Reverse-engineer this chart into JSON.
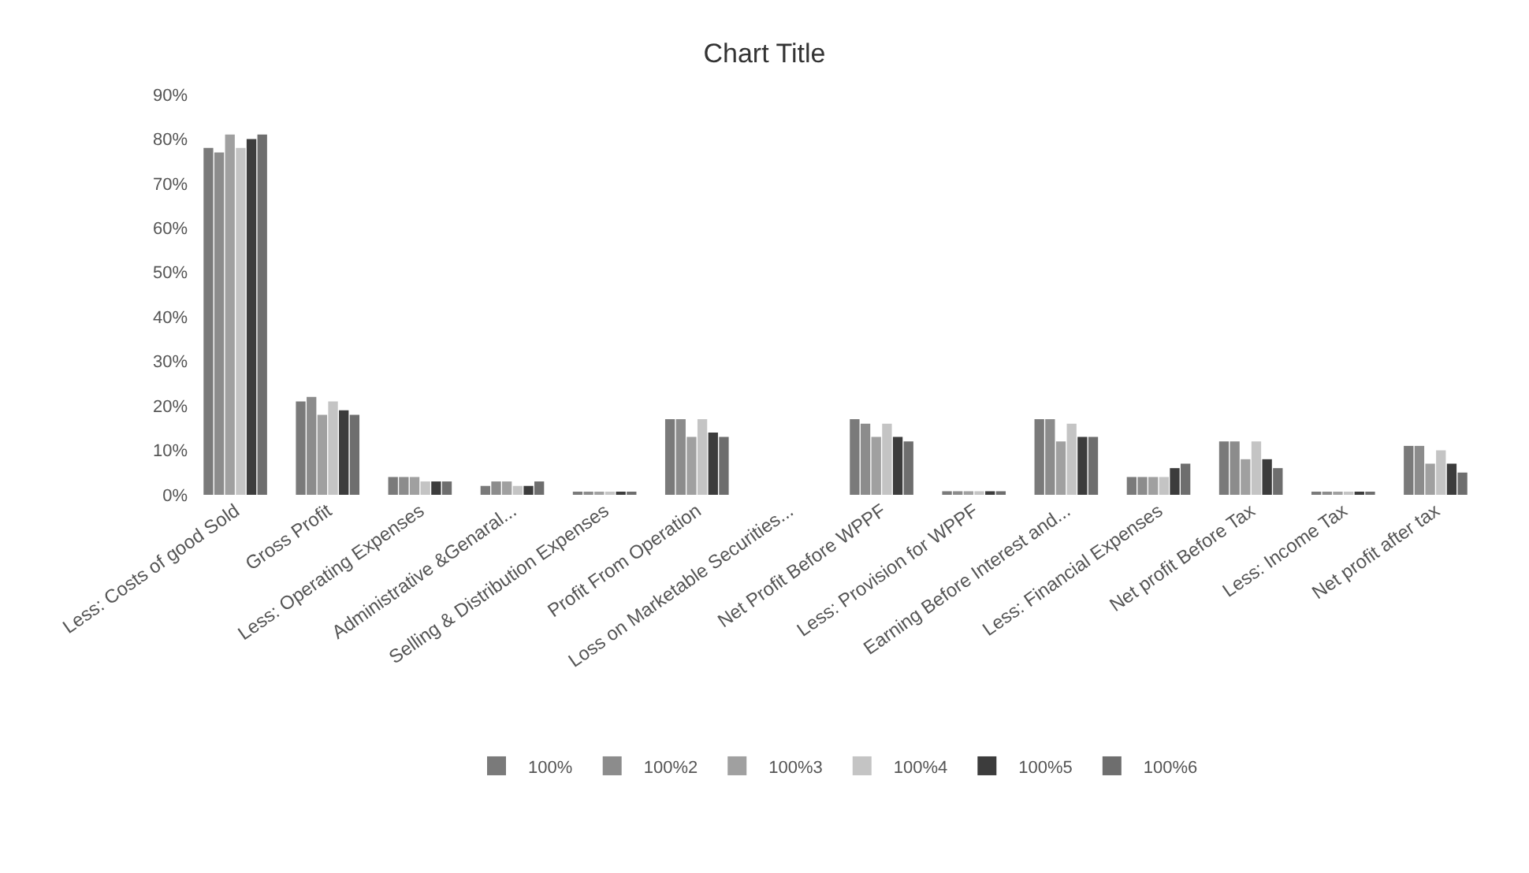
{
  "chart_data": {
    "type": "bar",
    "title": "Chart Title",
    "categories": [
      "Less: Costs of good Sold",
      "Gross Profit",
      "Less: Operating Expenses",
      "Administrative &Genaral...",
      "Selling & Distribution Expenses",
      "Profit From Operation",
      "Loss on Marketable Securities...",
      "Net Profit Before WPPF",
      "Less: Provision for WPPF",
      "Earning Before Interest and...",
      "Less: Financial Expenses",
      "Net profit Before Tax",
      "Less: Income Tax",
      "Net profit after tax"
    ],
    "series": [
      {
        "name": "100%",
        "color": "#7a7a7a",
        "values": [
          78,
          21,
          4,
          2,
          0.5,
          17,
          0,
          17,
          0.8,
          17,
          4,
          12,
          0.7,
          11
        ]
      },
      {
        "name": "100%2",
        "color": "#8c8c8c",
        "values": [
          77,
          22,
          4,
          3,
          0.5,
          17,
          0,
          16,
          0.8,
          17,
          4,
          12,
          0.7,
          11
        ]
      },
      {
        "name": "100%3",
        "color": "#a0a0a0",
        "values": [
          81,
          18,
          4,
          3,
          0.5,
          13,
          0,
          13,
          0.8,
          12,
          4,
          8,
          0.7,
          7
        ]
      },
      {
        "name": "100%4",
        "color": "#c4c4c4",
        "values": [
          78,
          21,
          3,
          2,
          0.5,
          17,
          0,
          16,
          0.8,
          16,
          4,
          12,
          0.7,
          10
        ]
      },
      {
        "name": "100%5",
        "color": "#3c3c3c",
        "values": [
          80,
          19,
          3,
          2,
          0.5,
          14,
          0,
          13,
          0.8,
          13,
          6,
          8,
          0.7,
          7
        ]
      },
      {
        "name": "100%6",
        "color": "#6e6e6e",
        "values": [
          81,
          18,
          3,
          3,
          0.5,
          13,
          0,
          12,
          0.8,
          13,
          7,
          6,
          0.7,
          5
        ]
      }
    ],
    "ylim": [
      0,
      90
    ],
    "yticks": [
      {
        "value": 0,
        "label": "0%"
      },
      {
        "value": 10,
        "label": "10%"
      },
      {
        "value": 20,
        "label": "20%"
      },
      {
        "value": 30,
        "label": "30%"
      },
      {
        "value": 40,
        "label": "40%"
      },
      {
        "value": 50,
        "label": "50%"
      },
      {
        "value": 60,
        "label": "60%"
      },
      {
        "value": 70,
        "label": "70%"
      },
      {
        "value": 80,
        "label": "80%"
      },
      {
        "value": 90,
        "label": "90%"
      }
    ],
    "grid": false,
    "legend": "bottom"
  }
}
